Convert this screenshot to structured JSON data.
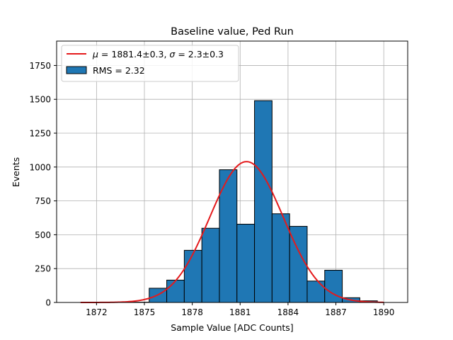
{
  "chart_data": {
    "type": "bar",
    "title": "Baseline value, Ped Run",
    "xlabel": "Sample Value [ADC Counts]",
    "ylabel": "Events",
    "xlim": [
      1869.5,
      1891.5
    ],
    "ylim": [
      0,
      1930
    ],
    "xticks": [
      1872,
      1875,
      1878,
      1881,
      1884,
      1887,
      1890
    ],
    "yticks": [
      0,
      250,
      500,
      750,
      1000,
      1250,
      1500,
      1750
    ],
    "grid": true,
    "legend_position": "top-left",
    "histogram": {
      "name": "RMS = 2.32",
      "color": "#1f77b4",
      "edgecolor": "#000000",
      "bins": [
        {
          "left": 1870.9,
          "right": 1872.0,
          "value": 0
        },
        {
          "left": 1872.0,
          "right": 1873.0,
          "value": 0
        },
        {
          "left": 1873.0,
          "right": 1874.2,
          "value": 0
        },
        {
          "left": 1874.2,
          "right": 1875.3,
          "value": 2
        },
        {
          "left": 1875.3,
          "right": 1876.4,
          "value": 105
        },
        {
          "left": 1876.4,
          "right": 1877.5,
          "value": 165
        },
        {
          "left": 1877.5,
          "right": 1878.6,
          "value": 385
        },
        {
          "left": 1878.6,
          "right": 1879.7,
          "value": 548
        },
        {
          "left": 1879.7,
          "right": 1880.8,
          "value": 980
        },
        {
          "left": 1880.8,
          "right": 1881.9,
          "value": 578
        },
        {
          "left": 1881.9,
          "right": 1883.0,
          "value": 1490
        },
        {
          "left": 1883.0,
          "right": 1884.1,
          "value": 655
        },
        {
          "left": 1884.1,
          "right": 1885.2,
          "value": 562
        },
        {
          "left": 1885.2,
          "right": 1886.3,
          "value": 158
        },
        {
          "left": 1886.3,
          "right": 1887.4,
          "value": 238
        },
        {
          "left": 1887.4,
          "right": 1888.5,
          "value": 35
        },
        {
          "left": 1888.5,
          "right": 1889.6,
          "value": 12
        },
        {
          "left": 1889.6,
          "right": 1890.0,
          "value": 0
        }
      ]
    },
    "fit": {
      "name": "μ = 1881.4±0.3, σ = 2.3±0.3",
      "mu_label": "μ",
      "mu_text": " = 1881.4±0.3, ",
      "sigma_label": "σ",
      "sigma_text": " = 2.3±0.3",
      "type": "gaussian",
      "mu": 1881.4,
      "sigma": 2.3,
      "amplitude": 1040,
      "x_range": [
        1871.0,
        1890.0
      ],
      "color": "#e41a1c"
    },
    "legend": {
      "rms_label": "RMS = 2.32"
    }
  }
}
